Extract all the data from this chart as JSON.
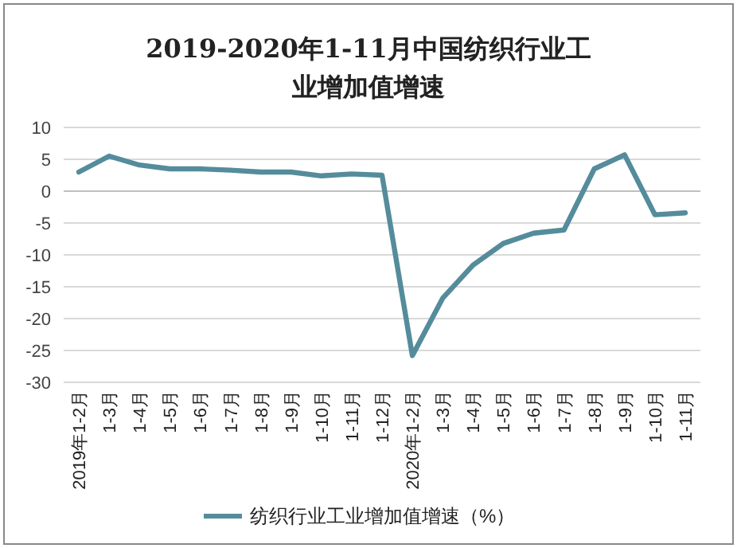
{
  "chart_data": {
    "type": "line",
    "title": "2019-2020年1-11月中国纺织行业工业增加值增速",
    "categories": [
      "2019年1-2月",
      "1-3月",
      "1-4月",
      "1-5月",
      "1-6月",
      "1-7月",
      "1-8月",
      "1-9月",
      "1-10月",
      "1-11月",
      "1-12月",
      "2020年1-2月",
      "1-3月",
      "1-4月",
      "1-5月",
      "1-6月",
      "1-7月",
      "1-8月",
      "1-9月",
      "1-10月",
      "1-11月"
    ],
    "series": [
      {
        "name": "纺织行业工业增加值增速（%）",
        "color": "#548c9c",
        "values": [
          3.0,
          5.5,
          4.1,
          3.5,
          3.5,
          3.3,
          3.0,
          3.0,
          2.4,
          2.7,
          2.5,
          -25.8,
          -16.8,
          -11.6,
          -8.2,
          -6.6,
          -6.1,
          3.5,
          5.7,
          -3.7,
          -3.4
        ]
      }
    ],
    "ylim": [
      -30,
      10
    ],
    "yticks": [
      -30,
      -25,
      -20,
      -15,
      -10,
      -5,
      0,
      5,
      10
    ],
    "grid": "y",
    "legend": "bottom",
    "marker": "none",
    "line_style": "solid"
  }
}
